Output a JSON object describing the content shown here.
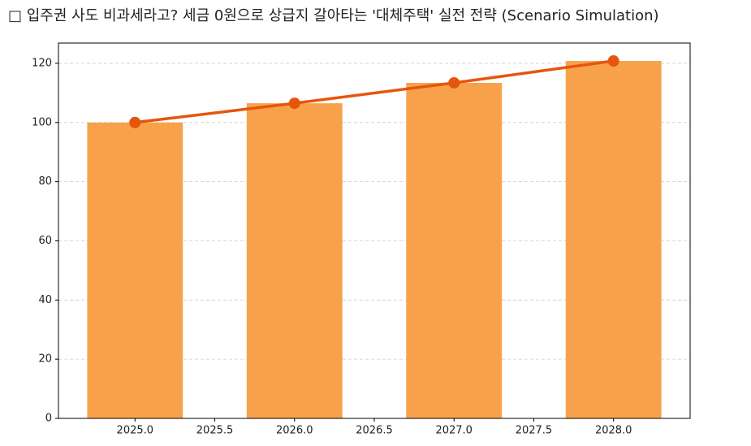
{
  "chart_data": {
    "type": "bar",
    "title": "□ 입주권 사도 비과세라고? 세금 0원으로 상급지 갈아타는 '대체주택' 실전 전략 (Scenario Simulation)",
    "x": [
      2025,
      2026,
      2027,
      2028
    ],
    "series": [
      {
        "type": "bar",
        "color": "#f7a24b",
        "values": [
          100,
          106.5,
          113.4,
          120.8
        ]
      },
      {
        "type": "line",
        "color": "#e6550d",
        "values": [
          100,
          106.5,
          113.4,
          120.8
        ]
      }
    ],
    "bar_width": 0.6,
    "xlim": [
      2024.52,
      2028.48
    ],
    "xticks": [
      {
        "value": 2025,
        "label": "2025.0"
      },
      {
        "value": 2025.5,
        "label": "2025.5"
      },
      {
        "value": 2026,
        "label": "2026.0"
      },
      {
        "value": 2026.5,
        "label": "2026.5"
      },
      {
        "value": 2027,
        "label": "2027.0"
      },
      {
        "value": 2027.5,
        "label": "2027.5"
      },
      {
        "value": 2028,
        "label": "2028.0"
      }
    ],
    "ylim": [
      0,
      126.85
    ],
    "yticks": [
      0,
      20,
      40,
      60,
      80,
      100,
      120
    ],
    "grid": true
  }
}
